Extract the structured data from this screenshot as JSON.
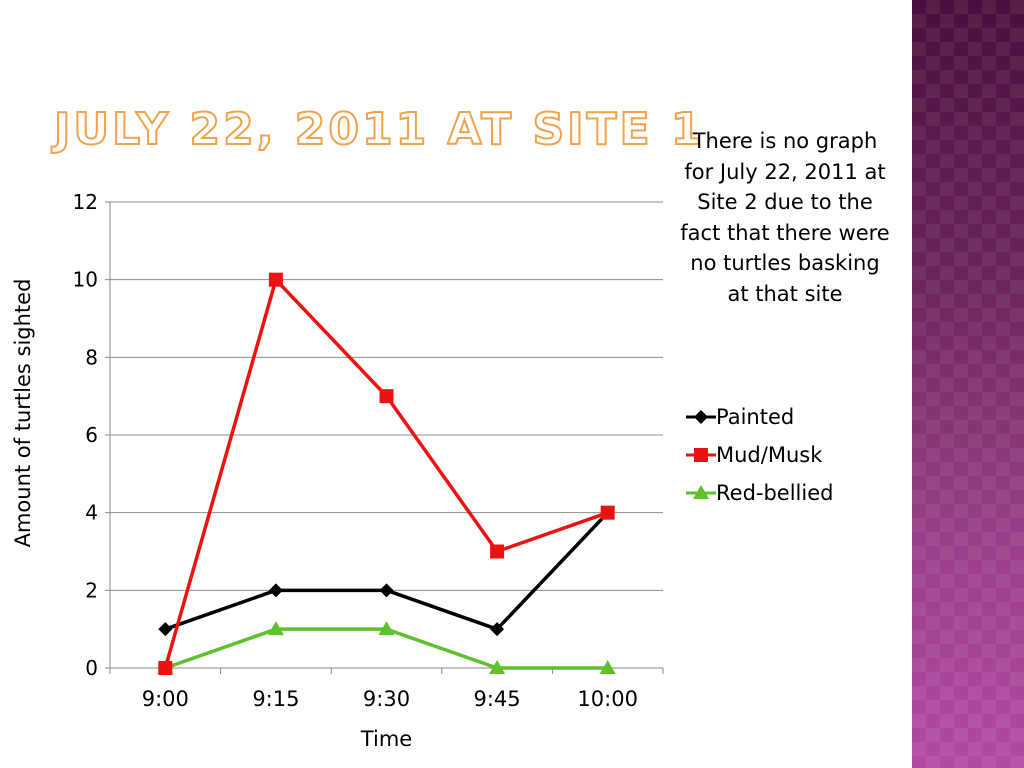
{
  "slide": {
    "title": "July 22, 2011 at Site 1",
    "note": "There is no graph for July 22, 2011 at Site 2 due to the fact that there were no turtles basking at that site"
  },
  "chart_data": {
    "type": "line",
    "title": "",
    "xlabel": "Time",
    "ylabel": "Amount of turtles sighted",
    "categories": [
      "9:00",
      "9:15",
      "9:30",
      "9:45",
      "10:00"
    ],
    "ylim": [
      0,
      12
    ],
    "yticks": [
      0,
      2,
      4,
      6,
      8,
      10,
      12
    ],
    "grid": true,
    "legend_position": "right",
    "series": [
      {
        "name": "Painted",
        "values": [
          1,
          2,
          2,
          1,
          4
        ],
        "color": "#000000",
        "marker": "diamond"
      },
      {
        "name": "Mud/Musk",
        "values": [
          0,
          10,
          7,
          3,
          4
        ],
        "color": "#ee1111",
        "marker": "square"
      },
      {
        "name": "Red-bellied",
        "values": [
          0,
          1,
          1,
          0,
          0
        ],
        "color": "#5cc12a",
        "marker": "triangle"
      }
    ]
  },
  "colors": {
    "title_outline": "#f2a24a",
    "side_band": "#7a2e6a"
  }
}
